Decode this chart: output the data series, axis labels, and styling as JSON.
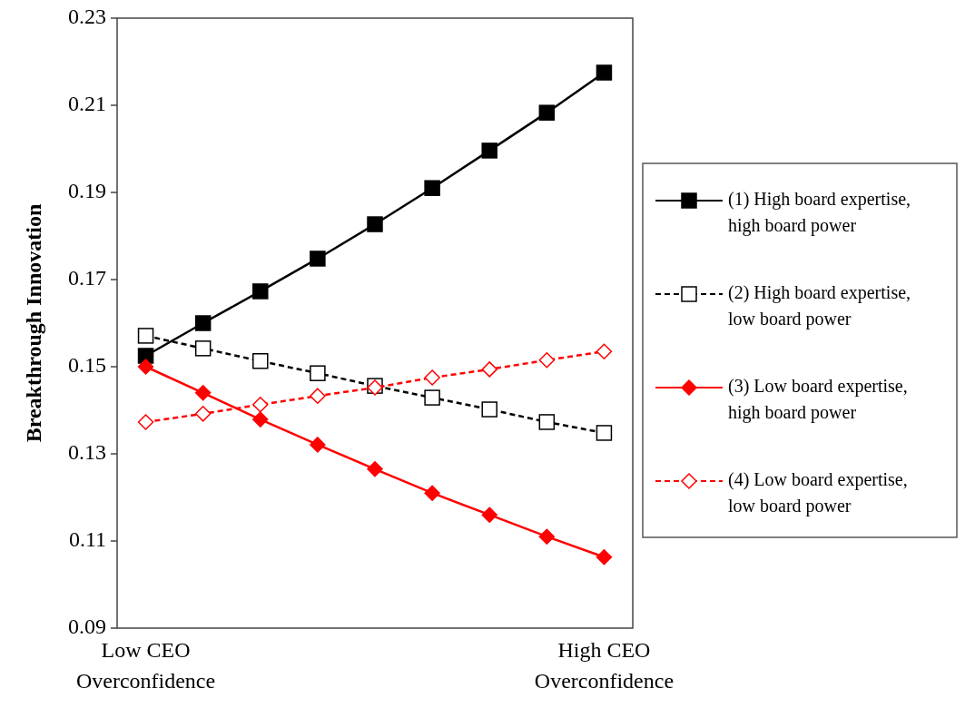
{
  "chart_data": {
    "type": "line",
    "ylabel": "Breakthrough Innovation",
    "categories": [
      "Low CEO Overconfidence",
      null,
      null,
      null,
      null,
      null,
      null,
      null,
      "High CEO Overconfidence"
    ],
    "ylim": [
      0.09,
      0.23
    ],
    "yticks": [
      0.09,
      0.11,
      0.13,
      0.15,
      0.17,
      0.19,
      0.21,
      0.23
    ],
    "grid": false,
    "legend": "right",
    "series": [
      {
        "name": "(1) High board expertise, high board power",
        "color": "#000000",
        "marker": "square",
        "line_style": "solid",
        "values": [
          0.1525,
          0.16,
          0.1673,
          0.1748,
          0.1827,
          0.191,
          0.1996,
          0.2083,
          0.2175
        ]
      },
      {
        "name": "(2) High board expertise, low board power",
        "color": "#000000",
        "marker": "square",
        "line_style": "dashed",
        "values": [
          0.1571,
          0.1542,
          0.1513,
          0.1485,
          0.1456,
          0.1429,
          0.1402,
          0.1373,
          0.1348
        ]
      },
      {
        "name": "(3) Low board expertise, high board power",
        "color": "#ff0000",
        "marker": "diamond",
        "line_style": "solid",
        "values": [
          0.15,
          0.144,
          0.1379,
          0.1321,
          0.1265,
          0.121,
          0.116,
          0.111,
          0.1063
        ]
      },
      {
        "name": "(4) Low board expertise, low board power",
        "color": "#ff0000",
        "marker": "diamond",
        "line_style": "dashed",
        "values": [
          0.1373,
          0.1392,
          0.1413,
          0.1433,
          0.1452,
          0.1475,
          0.1494,
          0.1515,
          0.1535
        ]
      }
    ]
  }
}
